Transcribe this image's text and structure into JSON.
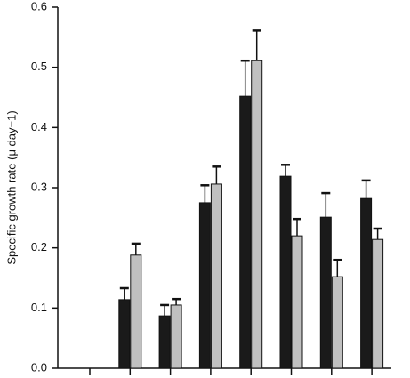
{
  "chart_data": {
    "type": "bar",
    "y_label": "Specific growth rate (μ day−1)",
    "categories": [
      null,
      null,
      null,
      null,
      null,
      null,
      null,
      null
    ],
    "series": [
      {
        "color": "#1a1a1a",
        "values": [
          null,
          0.114,
          0.087,
          0.275,
          0.452,
          0.319,
          0.251,
          0.282
        ],
        "errors": [
          null,
          0.019,
          0.018,
          0.029,
          0.059,
          0.019,
          0.04,
          0.03
        ]
      },
      {
        "color": "#c0c0c0",
        "values": [
          null,
          0.188,
          0.105,
          0.306,
          0.511,
          0.22,
          0.152,
          0.214
        ],
        "errors": [
          null,
          0.019,
          0.01,
          0.029,
          0.05,
          0.028,
          0.028,
          0.018
        ]
      }
    ],
    "ylim": [
      0,
      0.6
    ],
    "yticks": [
      {
        "value": 0,
        "label": "0.0"
      },
      0.1,
      0.2,
      0.3,
      0.4,
      0.5,
      0.6
    ],
    "grid": false
  }
}
